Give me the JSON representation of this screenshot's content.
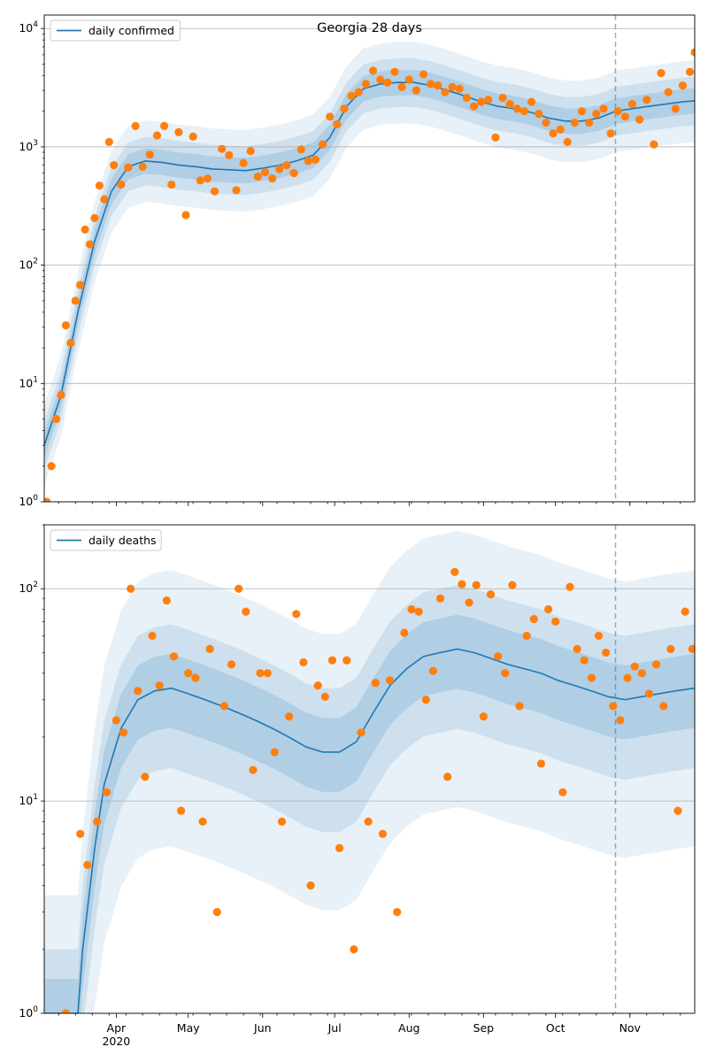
{
  "chart_data": [
    {
      "type": "scatter",
      "title": "Georgia 28 days",
      "yscale": "log",
      "ylim": [
        1,
        13000
      ],
      "xlim": [
        "2020-03-02",
        "2020-11-28"
      ],
      "grid": "y-major",
      "legend": {
        "position": "top-left",
        "entries": [
          "daily confirmed"
        ]
      },
      "y_tick_labels": [
        "10^0",
        "10^1",
        "10^2",
        "10^3",
        "10^4"
      ],
      "forecast_start": "2020-10-26",
      "series": [
        {
          "name": "daily confirmed",
          "kind": "line",
          "color": "#1f77b4",
          "x": [
            "2020-03-02",
            "2020-03-09",
            "2020-03-16",
            "2020-03-23",
            "2020-03-30",
            "2020-04-06",
            "2020-04-13",
            "2020-04-20",
            "2020-04-27",
            "2020-05-04",
            "2020-05-11",
            "2020-05-18",
            "2020-05-25",
            "2020-06-01",
            "2020-06-08",
            "2020-06-15",
            "2020-06-22",
            "2020-06-29",
            "2020-07-06",
            "2020-07-13",
            "2020-07-20",
            "2020-07-27",
            "2020-08-03",
            "2020-08-10",
            "2020-08-17",
            "2020-08-24",
            "2020-08-31",
            "2020-09-07",
            "2020-09-14",
            "2020-09-21",
            "2020-09-28",
            "2020-10-05",
            "2020-10-12",
            "2020-10-19",
            "2020-10-26",
            "2020-11-02",
            "2020-11-09",
            "2020-11-16",
            "2020-11-23",
            "2020-11-28"
          ],
          "y": [
            3,
            8,
            40,
            160,
            420,
            680,
            760,
            740,
            700,
            680,
            650,
            640,
            630,
            660,
            700,
            760,
            850,
            1200,
            2200,
            3100,
            3400,
            3500,
            3500,
            3300,
            3000,
            2700,
            2400,
            2200,
            2100,
            1950,
            1750,
            1650,
            1650,
            1750,
            2000,
            2100,
            2200,
            2300,
            2400,
            2450
          ]
        },
        {
          "name": "daily confirmed (observed)",
          "kind": "points",
          "color": "#ff7f0e",
          "x": [
            "2020-03-03",
            "2020-03-05",
            "2020-03-07",
            "2020-03-09",
            "2020-03-11",
            "2020-03-13",
            "2020-03-15",
            "2020-03-17",
            "2020-03-19",
            "2020-03-21",
            "2020-03-23",
            "2020-03-25",
            "2020-03-27",
            "2020-03-29",
            "2020-03-31",
            "2020-04-03",
            "2020-04-06",
            "2020-04-09",
            "2020-04-12",
            "2020-04-15",
            "2020-04-18",
            "2020-04-21",
            "2020-04-24",
            "2020-04-27",
            "2020-04-30",
            "2020-05-03",
            "2020-05-06",
            "2020-05-09",
            "2020-05-12",
            "2020-05-15",
            "2020-05-18",
            "2020-05-21",
            "2020-05-24",
            "2020-05-27",
            "2020-05-30",
            "2020-06-02",
            "2020-06-05",
            "2020-06-08",
            "2020-06-11",
            "2020-06-14",
            "2020-06-17",
            "2020-06-20",
            "2020-06-23",
            "2020-06-26",
            "2020-06-29",
            "2020-07-02",
            "2020-07-05",
            "2020-07-08",
            "2020-07-11",
            "2020-07-14",
            "2020-07-17",
            "2020-07-20",
            "2020-07-23",
            "2020-07-26",
            "2020-07-29",
            "2020-08-01",
            "2020-08-04",
            "2020-08-07",
            "2020-08-10",
            "2020-08-13",
            "2020-08-16",
            "2020-08-19",
            "2020-08-22",
            "2020-08-25",
            "2020-08-28",
            "2020-08-31",
            "2020-09-03",
            "2020-09-06",
            "2020-09-09",
            "2020-09-12",
            "2020-09-15",
            "2020-09-18",
            "2020-09-21",
            "2020-09-24",
            "2020-09-27",
            "2020-09-30",
            "2020-10-03",
            "2020-10-06",
            "2020-10-09",
            "2020-10-12",
            "2020-10-15",
            "2020-10-18",
            "2020-10-21",
            "2020-10-24",
            "2020-10-27",
            "2020-10-30",
            "2020-11-02",
            "2020-11-05",
            "2020-11-08",
            "2020-11-11",
            "2020-11-14",
            "2020-11-17",
            "2020-11-20",
            "2020-11-23",
            "2020-11-26",
            "2020-11-28"
          ],
          "y": [
            1,
            2,
            5,
            8,
            31,
            22,
            50,
            68,
            200,
            150,
            250,
            470,
            360,
            1100,
            700,
            480,
            670,
            1500,
            680,
            860,
            1250,
            1500,
            480,
            1330,
            265,
            1220,
            520,
            540,
            420,
            960,
            850,
            430,
            730,
            920,
            560,
            610,
            540,
            650,
            700,
            600,
            950,
            760,
            780,
            1050,
            1800,
            1550,
            2100,
            2700,
            2900,
            3400,
            4400,
            3700,
            3500,
            4300,
            3200,
            3700,
            3000,
            4100,
            3400,
            3300,
            2900,
            3200,
            3100,
            2600,
            2200,
            2400,
            2500,
            1200,
            2600,
            2300,
            2100,
            2000,
            2400,
            1900,
            1600,
            1300,
            1400,
            1100,
            1600,
            2000,
            1600,
            1900,
            2100,
            1300,
            2000,
            1800,
            2300,
            1700,
            2500,
            1050,
            4200,
            2900,
            2100,
            3300,
            4300,
            6300
          ]
        }
      ]
    },
    {
      "type": "scatter",
      "yscale": "log",
      "ylim": [
        1,
        200
      ],
      "xlim": [
        "2020-03-02",
        "2020-11-28"
      ],
      "grid": "y-major",
      "legend": {
        "position": "top-left",
        "entries": [
          "daily deaths"
        ]
      },
      "y_tick_labels": [
        "10^0",
        "10^1",
        "10^2"
      ],
      "x_tick_labels": [
        "Apr\n2020",
        "May",
        "Jun",
        "Jul",
        "Aug",
        "Sep",
        "Oct",
        "Nov"
      ],
      "x_ticks": [
        "2020-04-01",
        "2020-05-01",
        "2020-06-01",
        "2020-07-01",
        "2020-08-01",
        "2020-09-01",
        "2020-10-01",
        "2020-11-01"
      ],
      "forecast_start": "2020-10-26",
      "series": [
        {
          "name": "daily deaths",
          "kind": "line",
          "color": "#1f77b4",
          "x": [
            "2020-03-02",
            "2020-03-16",
            "2020-03-18",
            "2020-03-23",
            "2020-03-27",
            "2020-04-03",
            "2020-04-10",
            "2020-04-17",
            "2020-04-24",
            "2020-05-01",
            "2020-05-08",
            "2020-05-15",
            "2020-05-22",
            "2020-05-29",
            "2020-06-05",
            "2020-06-12",
            "2020-06-19",
            "2020-06-26",
            "2020-07-03",
            "2020-07-10",
            "2020-07-17",
            "2020-07-24",
            "2020-07-31",
            "2020-08-07",
            "2020-08-14",
            "2020-08-21",
            "2020-08-28",
            "2020-09-04",
            "2020-09-11",
            "2020-09-18",
            "2020-09-25",
            "2020-10-02",
            "2020-10-09",
            "2020-10-16",
            "2020-10-23",
            "2020-10-30",
            "2020-11-06",
            "2020-11-13",
            "2020-11-20",
            "2020-11-28"
          ],
          "y": [
            1,
            1,
            2,
            6,
            12,
            22,
            30,
            33,
            34,
            32,
            30,
            28,
            26,
            24,
            22,
            20,
            18,
            17,
            17,
            19,
            26,
            35,
            42,
            48,
            50,
            52,
            50,
            47,
            44,
            42,
            40,
            37,
            35,
            33,
            31,
            30,
            31,
            32,
            33,
            34
          ]
        },
        {
          "name": "daily deaths (observed)",
          "kind": "points",
          "color": "#ff7f0e",
          "x": [
            "2020-03-11",
            "2020-03-17",
            "2020-03-20",
            "2020-03-24",
            "2020-03-28",
            "2020-04-01",
            "2020-04-04",
            "2020-04-07",
            "2020-04-10",
            "2020-04-13",
            "2020-04-16",
            "2020-04-19",
            "2020-04-22",
            "2020-04-25",
            "2020-04-28",
            "2020-05-01",
            "2020-05-04",
            "2020-05-07",
            "2020-05-10",
            "2020-05-13",
            "2020-05-16",
            "2020-05-19",
            "2020-05-22",
            "2020-05-25",
            "2020-05-28",
            "2020-05-31",
            "2020-06-03",
            "2020-06-06",
            "2020-06-09",
            "2020-06-12",
            "2020-06-15",
            "2020-06-18",
            "2020-06-21",
            "2020-06-24",
            "2020-06-27",
            "2020-06-30",
            "2020-07-03",
            "2020-07-06",
            "2020-07-09",
            "2020-07-12",
            "2020-07-15",
            "2020-07-18",
            "2020-07-21",
            "2020-07-24",
            "2020-07-27",
            "2020-07-30",
            "2020-08-02",
            "2020-08-05",
            "2020-08-08",
            "2020-08-11",
            "2020-08-14",
            "2020-08-17",
            "2020-08-20",
            "2020-08-23",
            "2020-08-26",
            "2020-08-29",
            "2020-09-01",
            "2020-09-04",
            "2020-09-07",
            "2020-09-10",
            "2020-09-13",
            "2020-09-16",
            "2020-09-19",
            "2020-09-22",
            "2020-09-25",
            "2020-09-28",
            "2020-10-01",
            "2020-10-04",
            "2020-10-07",
            "2020-10-10",
            "2020-10-13",
            "2020-10-16",
            "2020-10-19",
            "2020-10-22",
            "2020-10-25",
            "2020-10-28",
            "2020-10-31",
            "2020-11-03",
            "2020-11-06",
            "2020-11-09",
            "2020-11-12",
            "2020-11-15",
            "2020-11-18",
            "2020-11-21",
            "2020-11-24",
            "2020-11-27"
          ],
          "y": [
            1,
            7,
            5,
            8,
            11,
            24,
            21,
            100,
            33,
            13,
            60,
            35,
            88,
            48,
            9,
            40,
            38,
            8,
            52,
            3,
            28,
            44,
            100,
            78,
            14,
            40,
            40,
            17,
            8,
            25,
            76,
            45,
            4,
            35,
            31,
            46,
            6,
            46,
            2,
            21,
            8,
            36,
            7,
            37,
            3,
            62,
            80,
            78,
            30,
            41,
            90,
            13,
            120,
            105,
            86,
            104,
            25,
            94,
            48,
            40,
            104,
            28,
            60,
            72,
            15,
            80,
            70,
            11,
            102,
            52,
            46,
            38,
            60,
            50,
            28,
            24,
            38,
            43,
            40,
            32,
            44,
            28,
            52,
            9,
            78,
            52
          ]
        }
      ]
    }
  ]
}
